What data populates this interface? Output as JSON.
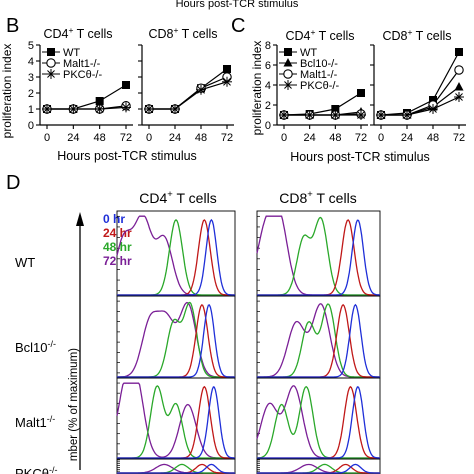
{
  "header": {
    "cropped_title": "Hours post-TCR stimulus"
  },
  "panel_b": {
    "letter": "B",
    "ylabel": "proliferation index",
    "xlabel": "Hours post-TCR stimulus",
    "subpanels": [
      {
        "title": "CD4+ T cells",
        "title_main": "CD4",
        "title_sup": "+",
        "title_rest": " T cells"
      },
      {
        "title": "CD8+ T cells",
        "title_main": "CD8",
        "title_sup": "+",
        "title_rest": " T cells"
      }
    ],
    "legend": [
      "WT",
      "Malt1-/-",
      "PKCθ-/-"
    ]
  },
  "panel_c": {
    "letter": "C",
    "ylabel": "proliferation index",
    "xlabel": "Hours post-TCR stimulus",
    "subpanels": [
      {
        "title": "CD4+ T cells",
        "title_main": "CD4",
        "title_sup": "+",
        "title_rest": " T cells"
      },
      {
        "title": "CD8+ T cells",
        "title_main": "CD8",
        "title_sup": "+",
        "title_rest": " T cells"
      }
    ],
    "legend": [
      "WT",
      "Bcl10-/-",
      "Malt1-/-",
      "PKCθ-/-"
    ]
  },
  "panel_d": {
    "letter": "D",
    "ylabel_fragment": "mber (% of maximum)",
    "column_titles": [
      {
        "main": "CD4",
        "sup": "+",
        "rest": " T cells"
      },
      {
        "main": "CD8",
        "sup": "+",
        "rest": " T cells"
      }
    ],
    "time_legend": [
      "0 hr",
      "24 hr",
      "48 hr",
      "72 hr"
    ],
    "time_colors": [
      "#1f2fd8",
      "#c01818",
      "#2aa82a",
      "#7a1f96"
    ],
    "row_labels": [
      {
        "base": "WT",
        "sup": ""
      },
      {
        "base": "Bcl10",
        "sup": "-/-"
      },
      {
        "base": "Malt1",
        "sup": "-/-"
      },
      {
        "base": "PKCθ",
        "sup": "-/-"
      }
    ]
  },
  "chart_data": [
    {
      "type": "line",
      "panel": "B",
      "subpanel": "CD4+ T cells",
      "xlabel": "Hours post-TCR stimulus",
      "ylabel": "proliferation index",
      "x": [
        0,
        24,
        48,
        72
      ],
      "xticks": [
        0,
        24,
        48,
        72
      ],
      "ylim": [
        0,
        5
      ],
      "yticks": [
        0,
        1,
        2,
        3,
        4,
        5
      ],
      "legend_position": "top-left",
      "series": [
        {
          "name": "WT",
          "marker": "square-filled",
          "values": [
            1.0,
            1.0,
            1.5,
            2.5
          ]
        },
        {
          "name": "Malt1-/-",
          "marker": "circle-open",
          "values": [
            1.0,
            1.0,
            1.0,
            1.2
          ]
        },
        {
          "name": "PKCθ-/-",
          "marker": "asterisk",
          "values": [
            1.0,
            1.0,
            1.0,
            1.1
          ]
        }
      ]
    },
    {
      "type": "line",
      "panel": "B",
      "subpanel": "CD8+ T cells",
      "xlabel": "Hours post-TCR stimulus",
      "ylabel": "proliferation index",
      "x": [
        0,
        24,
        48,
        72
      ],
      "xticks": [
        0,
        24,
        48,
        72
      ],
      "ylim": [
        0,
        5
      ],
      "yticks": [
        0,
        1,
        2,
        3,
        4,
        5
      ],
      "series": [
        {
          "name": "WT",
          "marker": "square-filled",
          "values": [
            1.0,
            1.0,
            2.3,
            3.5
          ]
        },
        {
          "name": "Malt1-/-",
          "marker": "circle-open",
          "values": [
            1.0,
            1.0,
            2.3,
            3.0
          ]
        },
        {
          "name": "PKCθ-/-",
          "marker": "asterisk",
          "values": [
            1.0,
            1.0,
            2.2,
            2.7
          ]
        }
      ]
    },
    {
      "type": "line",
      "panel": "C",
      "subpanel": "CD4+ T cells",
      "xlabel": "Hours post-TCR stimulus",
      "ylabel": "proliferation index",
      "x": [
        0,
        24,
        48,
        72
      ],
      "xticks": [
        0,
        24,
        48,
        72
      ],
      "ylim": [
        0,
        8
      ],
      "yticks": [
        0,
        2,
        4,
        6,
        8
      ],
      "legend_position": "top-left",
      "series": [
        {
          "name": "WT",
          "marker": "square-filled",
          "values": [
            1.0,
            1.1,
            1.6,
            3.2
          ]
        },
        {
          "name": "Bcl10-/-",
          "marker": "triangle-filled",
          "values": [
            1.0,
            1.0,
            1.0,
            1.3
          ]
        },
        {
          "name": "Malt1-/-",
          "marker": "circle-open",
          "values": [
            1.0,
            1.0,
            1.0,
            1.1
          ]
        },
        {
          "name": "PKCθ-/-",
          "marker": "asterisk",
          "values": [
            1.0,
            1.0,
            1.0,
            1.0
          ]
        }
      ]
    },
    {
      "type": "line",
      "panel": "C",
      "subpanel": "CD8+ T cells",
      "xlabel": "Hours post-TCR stimulus",
      "ylabel": "proliferation index",
      "x": [
        0,
        24,
        48,
        72
      ],
      "xticks": [
        0,
        24,
        48,
        72
      ],
      "ylim": [
        0,
        8
      ],
      "yticks": [
        0,
        2,
        4,
        6,
        8
      ],
      "series": [
        {
          "name": "WT",
          "marker": "square-filled",
          "values": [
            1.0,
            1.2,
            2.5,
            7.3
          ]
        },
        {
          "name": "Bcl10-/-",
          "marker": "triangle-filled",
          "values": [
            1.0,
            1.0,
            1.8,
            3.8
          ]
        },
        {
          "name": "Malt1-/-",
          "marker": "circle-open",
          "values": [
            1.0,
            1.0,
            2.0,
            5.5
          ]
        },
        {
          "name": "PKCθ-/-",
          "marker": "asterisk",
          "values": [
            1.0,
            1.0,
            1.6,
            2.8
          ]
        }
      ]
    },
    {
      "type": "area",
      "panel": "D",
      "description": "flow cytometry dye-dilution histograms",
      "ylabel": "mber (% of maximum)",
      "columns": [
        "CD4+ T cells",
        "CD8+ T cells"
      ],
      "rows": [
        "WT",
        "Bcl10-/-",
        "Malt1-/-",
        "PKCθ-/-"
      ],
      "series": [
        "0 hr",
        "24 hr",
        "48 hr",
        "72 hr"
      ]
    }
  ]
}
